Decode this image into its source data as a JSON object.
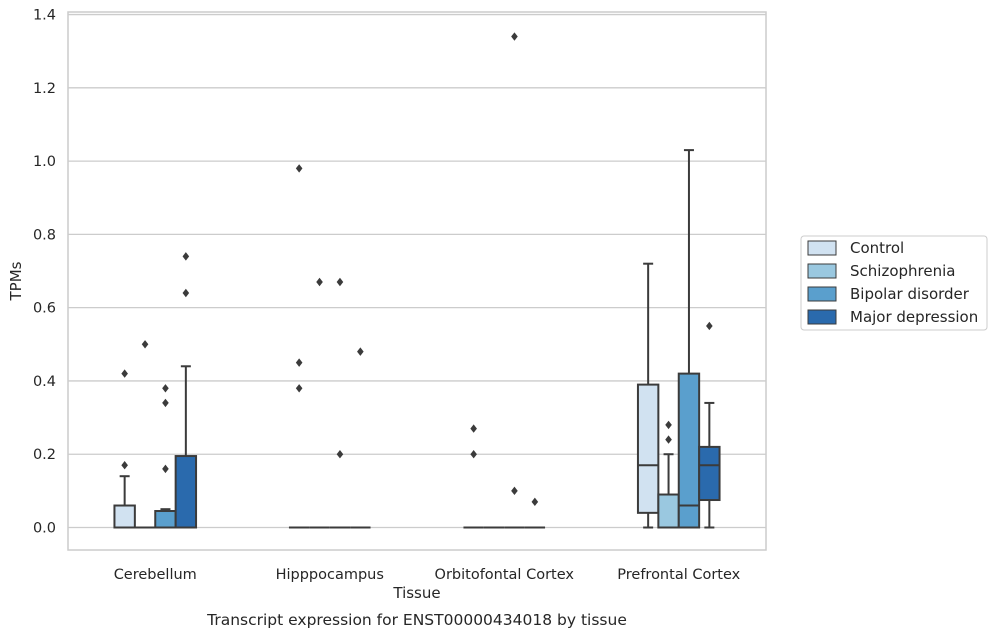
{
  "chart_data": {
    "type": "box",
    "xlabel": "Tissue",
    "ylabel": "TPMs",
    "caption": "Transcript expression for ENST00000434018 by tissue",
    "ylim": [
      -0.065,
      1.41
    ],
    "yticks": [
      0.0,
      0.2,
      0.4,
      0.6,
      0.8,
      1.0,
      1.2,
      1.4
    ],
    "ytick_labels": [
      "0.0",
      "0.2",
      "0.4",
      "0.6",
      "0.8",
      "1.0",
      "1.2",
      "1.4"
    ],
    "categories": [
      "Cerebellum",
      "Hipppocampus",
      "Orbitofontal Cortex",
      "Prefrontal Cortex"
    ],
    "grid": "horizontal",
    "legend_position": "right, outside plot",
    "series": [
      {
        "name": "Control",
        "color": "#d1e2f1",
        "boxes": [
          {
            "q1": 0.0,
            "median": 0.0,
            "q3": 0.06,
            "whisker_low": 0.0,
            "whisker_high": 0.14,
            "fliers": [
              0.17,
              0.42
            ]
          },
          {
            "q1": 0.0,
            "median": 0.0,
            "q3": 0.0,
            "whisker_low": 0.0,
            "whisker_high": 0.0,
            "fliers": [
              0.38,
              0.45,
              0.98
            ]
          },
          {
            "q1": 0.0,
            "median": 0.0,
            "q3": 0.0,
            "whisker_low": 0.0,
            "whisker_high": 0.0,
            "fliers": [
              0.2,
              0.27
            ]
          },
          {
            "q1": 0.04,
            "median": 0.17,
            "q3": 0.39,
            "whisker_low": 0.0,
            "whisker_high": 0.72,
            "fliers": []
          }
        ]
      },
      {
        "name": "Schizophrenia",
        "color": "#9ac8e0",
        "boxes": [
          {
            "q1": 0.0,
            "median": 0.0,
            "q3": 0.0,
            "whisker_low": 0.0,
            "whisker_high": 0.0,
            "fliers": [
              0.5
            ]
          },
          {
            "q1": 0.0,
            "median": 0.0,
            "q3": 0.0,
            "whisker_low": 0.0,
            "whisker_high": 0.0,
            "fliers": [
              0.67
            ]
          },
          {
            "q1": 0.0,
            "median": 0.0,
            "q3": 0.0,
            "whisker_low": 0.0,
            "whisker_high": 0.0,
            "fliers": []
          },
          {
            "q1": 0.0,
            "median": 0.0,
            "q3": 0.09,
            "whisker_low": 0.0,
            "whisker_high": 0.2,
            "fliers": [
              0.24,
              0.28
            ]
          }
        ]
      },
      {
        "name": "Bipolar disorder",
        "color": "#5a9fcd",
        "boxes": [
          {
            "q1": 0.0,
            "median": 0.0,
            "q3": 0.045,
            "whisker_low": 0.0,
            "whisker_high": 0.05,
            "fliers": [
              0.16,
              0.34,
              0.38
            ]
          },
          {
            "q1": 0.0,
            "median": 0.0,
            "q3": 0.0,
            "whisker_low": 0.0,
            "whisker_high": 0.0,
            "fliers": [
              0.2,
              0.67
            ]
          },
          {
            "q1": 0.0,
            "median": 0.0,
            "q3": 0.0,
            "whisker_low": 0.0,
            "whisker_high": 0.0,
            "fliers": [
              0.1,
              1.34
            ]
          },
          {
            "q1": 0.0,
            "median": 0.06,
            "q3": 0.42,
            "whisker_low": 0.0,
            "whisker_high": 1.03,
            "fliers": []
          }
        ]
      },
      {
        "name": "Major depression",
        "color": "#2a6aad",
        "boxes": [
          {
            "q1": 0.0,
            "median": 0.0,
            "q3": 0.195,
            "whisker_low": 0.0,
            "whisker_high": 0.44,
            "fliers": [
              0.64,
              0.74
            ]
          },
          {
            "q1": 0.0,
            "median": 0.0,
            "q3": 0.0,
            "whisker_low": 0.0,
            "whisker_high": 0.0,
            "fliers": [
              0.48
            ]
          },
          {
            "q1": 0.0,
            "median": 0.0,
            "q3": 0.0,
            "whisker_low": 0.0,
            "whisker_high": 0.0,
            "fliers": [
              0.07
            ]
          },
          {
            "q1": 0.075,
            "median": 0.17,
            "q3": 0.22,
            "whisker_low": 0.0,
            "whisker_high": 0.34,
            "fliers": [
              0.55
            ]
          }
        ]
      }
    ]
  }
}
